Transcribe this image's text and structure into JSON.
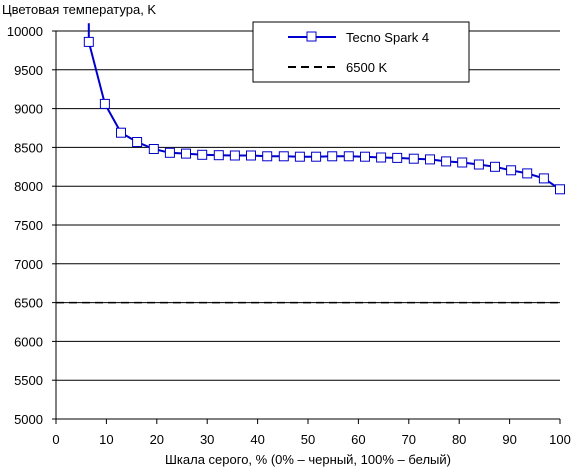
{
  "chart_data": {
    "type": "line",
    "title": "",
    "ylabel": "Цветовая температура, K",
    "xlabel": "Шкала серого, % (0% – черный, 100% – белый)",
    "xlim": [
      0,
      100
    ],
    "ylim": [
      5000,
      10000
    ],
    "xticks": [
      0,
      10,
      20,
      30,
      40,
      50,
      60,
      70,
      80,
      90,
      100
    ],
    "yticks": [
      5000,
      5500,
      6000,
      6500,
      7000,
      7500,
      8000,
      8500,
      9000,
      9500,
      10000
    ],
    "grid": "horizontal",
    "legend_position": "top-right",
    "series": [
      {
        "name": "Tecno Spark 4",
        "color": "#0000cc",
        "marker": "square",
        "line_start": {
          "x": 6.5,
          "y": 10100
        },
        "x": [
          6.5,
          9.7,
          12.9,
          16.1,
          19.4,
          22.6,
          25.8,
          29.0,
          32.3,
          35.5,
          38.7,
          41.9,
          45.2,
          48.4,
          51.6,
          54.8,
          58.1,
          61.3,
          64.5,
          67.7,
          71.0,
          74.2,
          77.4,
          80.6,
          83.9,
          87.1,
          90.3,
          93.5,
          96.8,
          100.0
        ],
        "values": [
          9860,
          9060,
          8690,
          8570,
          8480,
          8430,
          8420,
          8405,
          8400,
          8395,
          8395,
          8385,
          8385,
          8380,
          8380,
          8385,
          8385,
          8380,
          8370,
          8365,
          8355,
          8345,
          8320,
          8305,
          8280,
          8250,
          8205,
          8165,
          8100,
          7960
        ]
      },
      {
        "name": "6500 K",
        "color": "#000000",
        "style": "dashed",
        "x": [
          0,
          100
        ],
        "values": [
          6500,
          6500
        ]
      }
    ]
  }
}
